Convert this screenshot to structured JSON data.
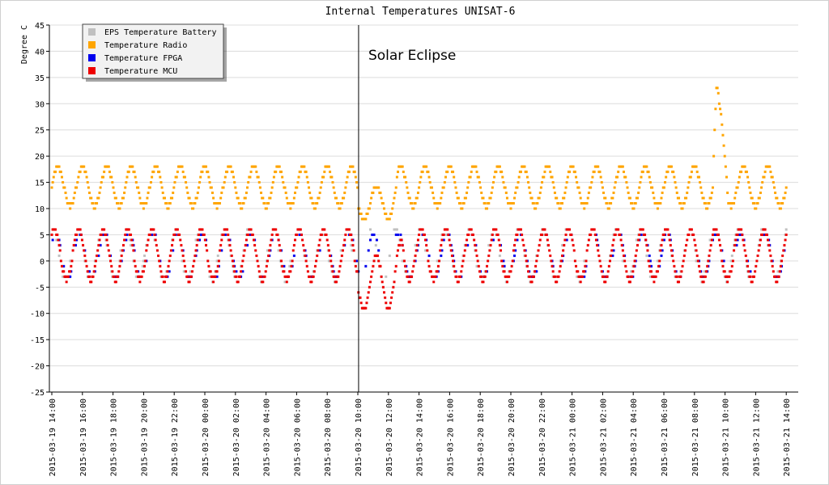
{
  "chart_data": {
    "type": "scatter",
    "title": "Internal Temperatures UNISAT-6",
    "ylabel": "Degree C",
    "xlabel": "",
    "ylim": [
      -25,
      45
    ],
    "yticks": [
      -25,
      -20,
      -15,
      -10,
      -5,
      0,
      5,
      10,
      15,
      20,
      25,
      30,
      35,
      40,
      45
    ],
    "xlim_hours": [
      0,
      49
    ],
    "x_tick_labels": [
      "2015-03-19 14:00",
      "2015-03-19 16:00",
      "2015-03-19 18:00",
      "2015-03-19 20:00",
      "2015-03-19 22:00",
      "2015-03-20 00:00",
      "2015-03-20 02:00",
      "2015-03-20 04:00",
      "2015-03-20 06:00",
      "2015-03-20 08:00",
      "2015-03-20 10:00",
      "2015-03-20 12:00",
      "2015-03-20 14:00",
      "2015-03-20 16:00",
      "2015-03-20 18:00",
      "2015-03-20 20:00",
      "2015-03-20 22:00",
      "2015-03-21 00:00",
      "2015-03-21 02:00",
      "2015-03-21 04:00",
      "2015-03-21 06:00",
      "2015-03-21 08:00",
      "2015-03-21 10:00",
      "2015-03-21 12:00",
      "2015-03-21 14:00"
    ],
    "x_tick_hours": [
      0,
      2,
      4,
      6,
      8,
      10,
      12,
      14,
      16,
      18,
      20,
      22,
      24,
      26,
      28,
      30,
      32,
      34,
      36,
      38,
      40,
      42,
      44,
      46,
      48
    ],
    "grid": true,
    "legend_position": "top-left",
    "annotation": {
      "text": "Solar Eclipse",
      "x_label": "2015-03-20 10:03"
    },
    "series": [
      {
        "name": "EPS Temperature Battery",
        "color": "#c0c0c0",
        "model": {
          "mean": 1.2,
          "amplitude": 4.8,
          "period_hours": 1.6,
          "phase": 0.2
        }
      },
      {
        "name": "Temperature Radio",
        "color": "#ffa500",
        "model": {
          "mean": 14.2,
          "amplitude": 3.8,
          "period_hours": 1.6,
          "phase": 0.0
        },
        "anomalies": [
          {
            "start_hour": 20.0,
            "end_hour": 22.5,
            "min": 8,
            "max": 16
          },
          {
            "start_hour": 43.2,
            "end_hour": 44.2,
            "peak": 34
          }
        ]
      },
      {
        "name": "Temperature FPGA",
        "color": "#0000ee",
        "model": {
          "mean": 1.0,
          "amplitude": 4.5,
          "period_hours": 1.6,
          "phase": 0.1
        }
      },
      {
        "name": "Temperature MCU",
        "color": "#ee0000",
        "model": {
          "mean": 1.2,
          "amplitude": 4.8,
          "period_hours": 1.6,
          "phase": 0.15
        },
        "anomalies": [
          {
            "start_hour": 20.0,
            "end_hour": 23.0,
            "min": -9,
            "max": 4
          }
        ]
      }
    ]
  }
}
